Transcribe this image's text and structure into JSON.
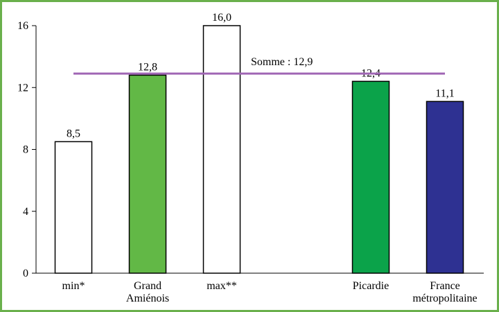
{
  "chart_data": {
    "type": "bar",
    "categories": [
      [
        "min*"
      ],
      [
        "Grand",
        "Amiénois"
      ],
      [
        "max**"
      ],
      [
        "Picardie"
      ],
      [
        "France",
        "métropolitaine"
      ]
    ],
    "values": [
      8.5,
      12.8,
      16.0,
      12.4,
      11.1
    ],
    "value_labels": [
      "8,5",
      "12,8",
      "16,0",
      "12,4",
      "11,1"
    ],
    "bar_colors": [
      "#ffffff",
      "#62b846",
      "#ffffff",
      "#0ba34a",
      "#2e3192"
    ],
    "ylim": [
      0,
      16
    ],
    "yticks": [
      0,
      4,
      8,
      12,
      16
    ],
    "ytick_labels": [
      "0",
      "4",
      "8",
      "12",
      "16"
    ],
    "reference_line": {
      "value": 12.9,
      "label": "Somme : 12,9",
      "color": "#a066b5"
    },
    "grid": false,
    "title": "",
    "xlabel": "",
    "ylabel": ""
  }
}
